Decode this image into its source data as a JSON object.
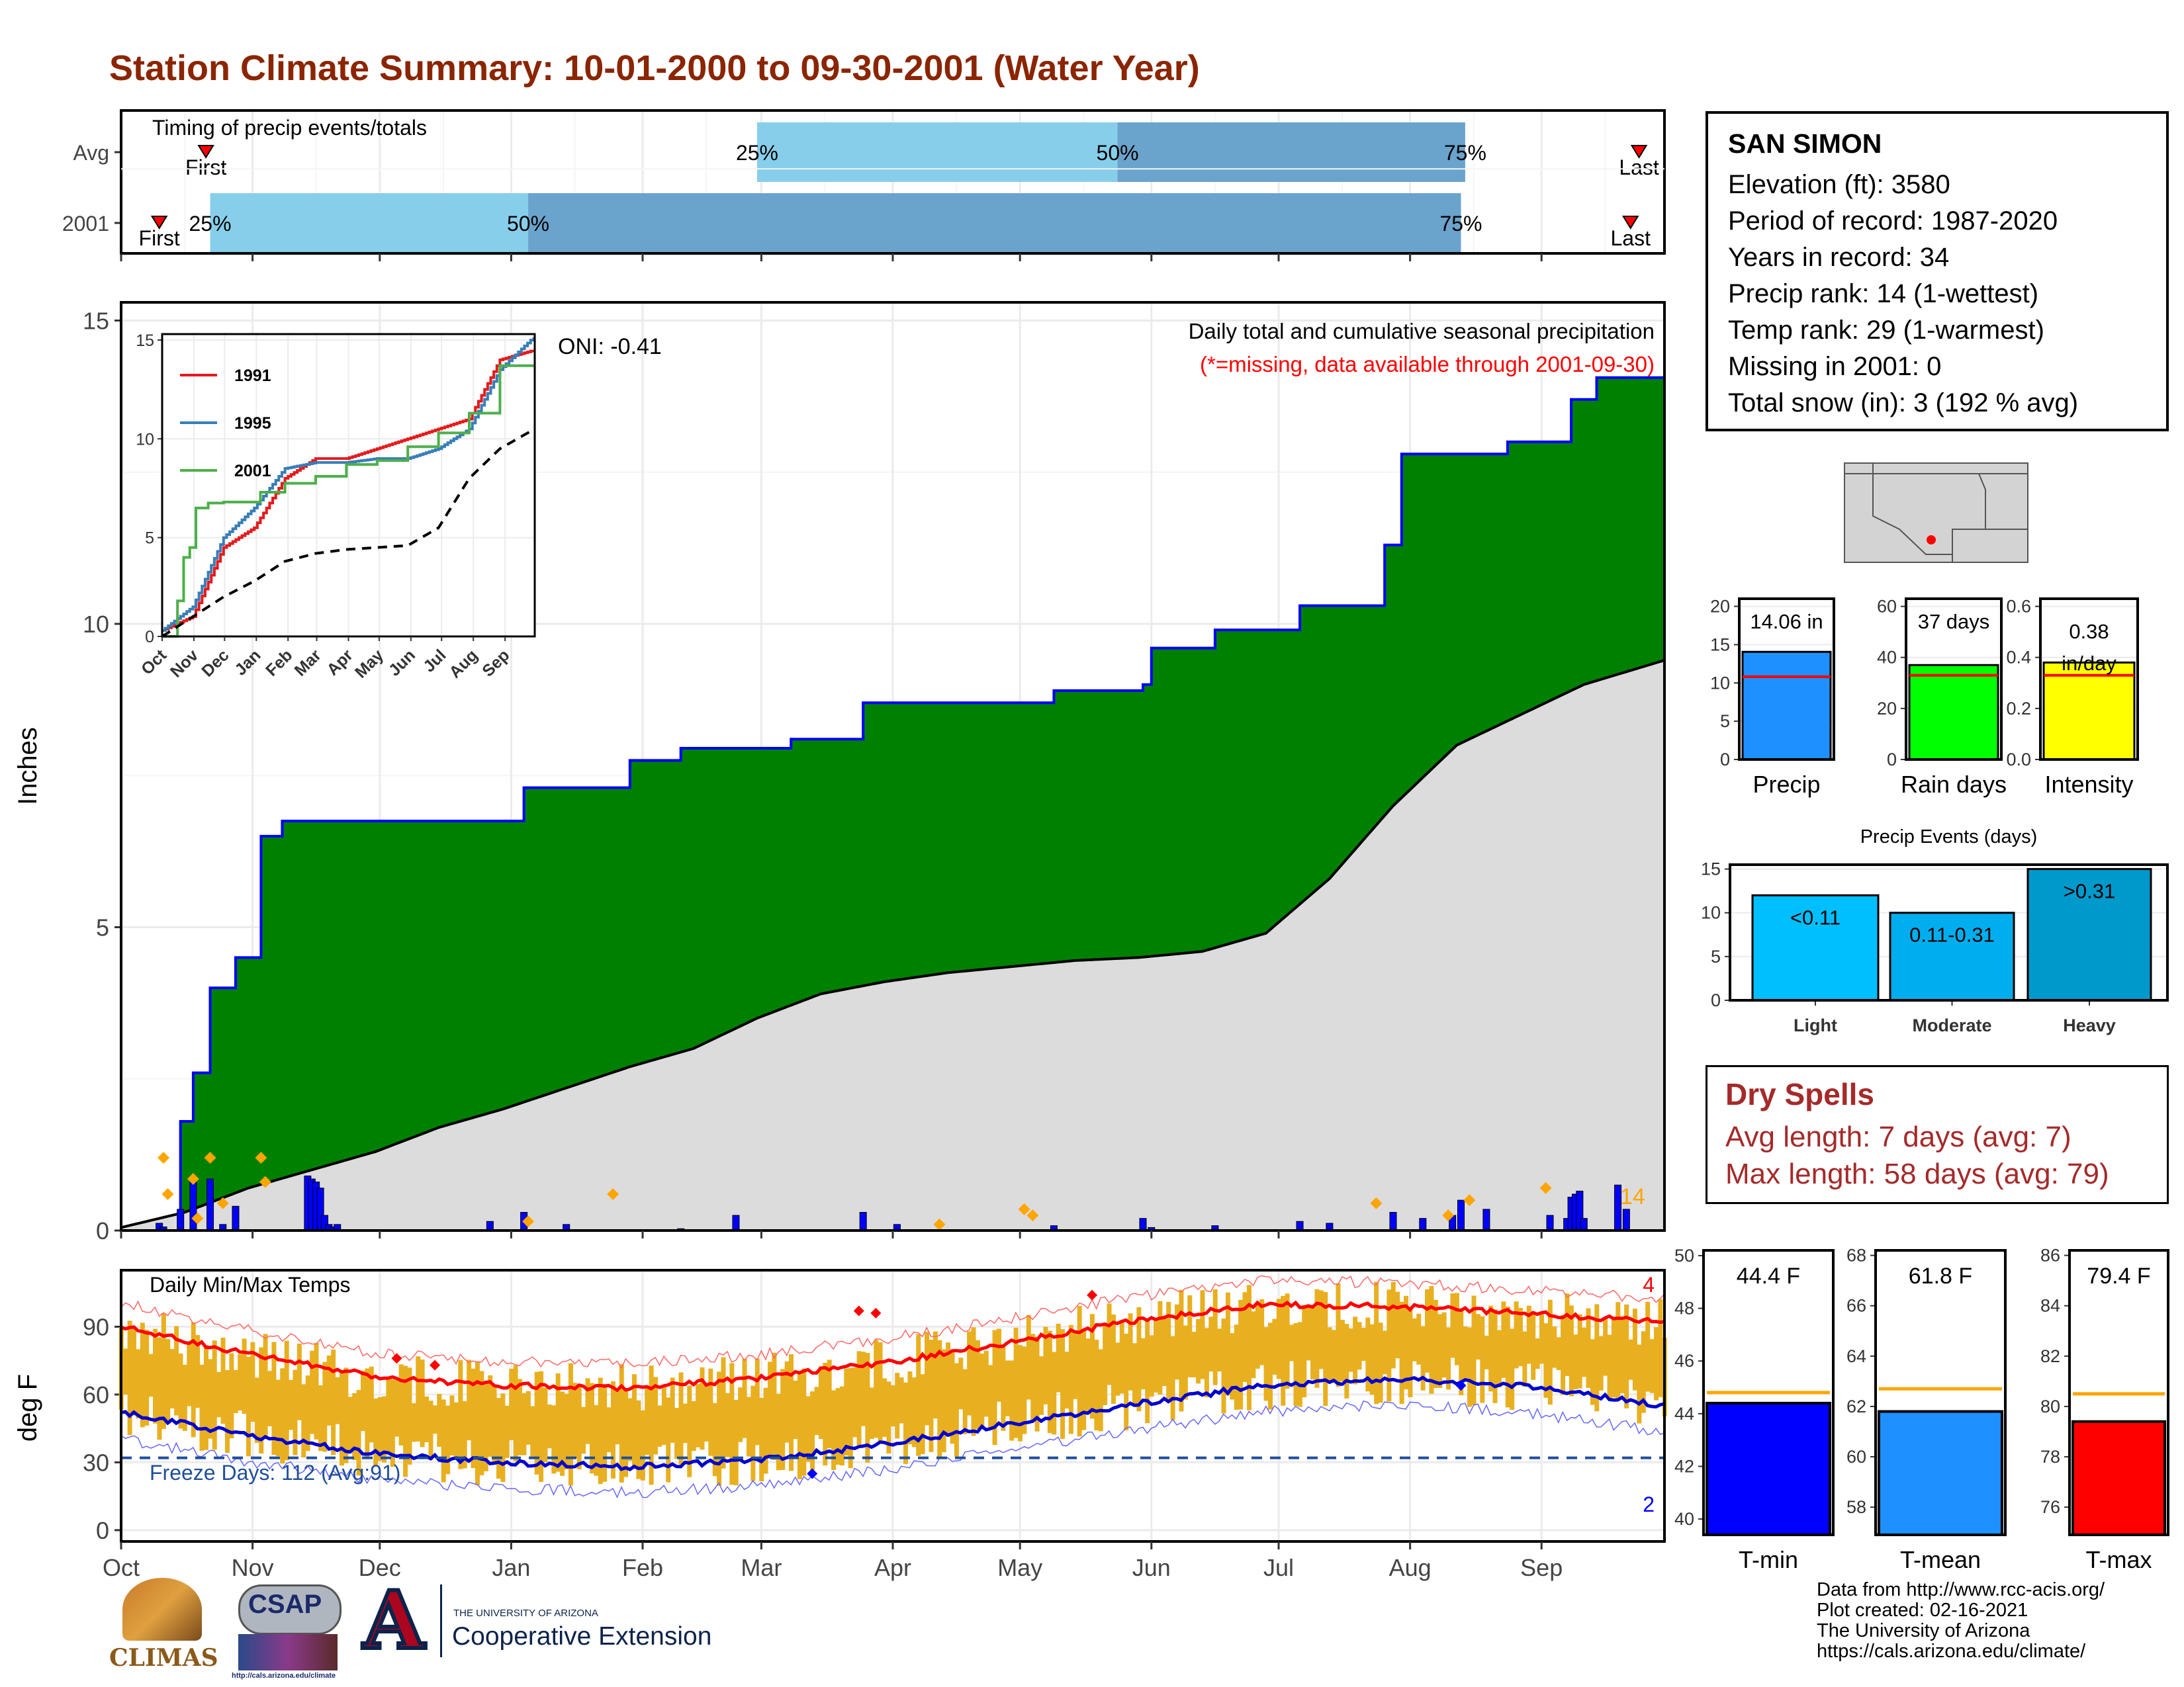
{
  "title": "Station Climate Summary: 10-01-2000 to 09-30-2001 (Water Year)",
  "colors": {
    "title": "#8b2500",
    "timing_light": "#87ceeb",
    "timing_dark": "#6aa3cc",
    "seasonal_fill": "#008000",
    "avg_fill": "#dcdcdc",
    "daily_bar": "#0000ff",
    "marker": "#ffa500",
    "temp_bar": "#e8b020",
    "tmax": "#ff0000",
    "tmin": "#0000cd"
  },
  "timing": {
    "title": "Timing of precip events/totals",
    "rows": [
      {
        "label": "Avg",
        "first_day": 20,
        "p25_day": 150,
        "p50_day": 235,
        "p75_day": 317,
        "last_day": 358,
        "first_label": "First",
        "last_label": "Last"
      },
      {
        "label": "2001",
        "first_day": 9,
        "p25_day": 21,
        "p50_day": 96,
        "p75_day": 316,
        "last_day": 356,
        "first_label": "First",
        "last_label": "Last"
      }
    ],
    "pct_labels": [
      "25%",
      "50%",
      "75%"
    ]
  },
  "main_chart": {
    "ylabel": "Inches",
    "yticks": [
      0,
      5,
      10,
      15
    ],
    "ylim": [
      0,
      15.3
    ],
    "annotation_title": "Daily total and cumulative seasonal precipitation",
    "annotation_missing": "(*=missing, data available through 2001-09-30)",
    "oni": "ONI: -0.41",
    "max_day_label": "14"
  },
  "inset": {
    "yticks": [
      0,
      5,
      10,
      15
    ],
    "months": [
      "Oct",
      "Nov",
      "Dec",
      "Jan",
      "Feb",
      "Mar",
      "Apr",
      "May",
      "Jun",
      "Jul",
      "Aug",
      "Sep"
    ],
    "legend": [
      {
        "name": "1991",
        "color": "#e41a1c"
      },
      {
        "name": "1995",
        "color": "#377eb8"
      },
      {
        "name": "2001",
        "color": "#4daf4a"
      }
    ]
  },
  "temp_chart": {
    "ylabel": "deg F",
    "title": "Daily Min/Max Temps",
    "yticks": [
      0,
      30,
      60,
      90
    ],
    "freeze_label": "Freeze Days: 112 (Avg:91)",
    "count_max": "4",
    "count_min": "2"
  },
  "x_months": [
    "Oct",
    "Nov",
    "Dec",
    "Jan",
    "Feb",
    "Mar",
    "Apr",
    "May",
    "Jun",
    "Jul",
    "Aug",
    "Sep"
  ],
  "station": {
    "name": "SAN SIMON",
    "lines": [
      "Elevation (ft): 3580",
      "Period of record: 1987-2020",
      "Years in record: 34",
      "Precip rank: 14 (1-wettest)",
      "Temp rank: 29 (1-warmest)",
      "Missing in 2001: 0",
      "Total snow (in): 3 (192 % avg)"
    ]
  },
  "summary_bars": [
    {
      "label": "Precip",
      "value_text": "14.06 in",
      "value": 14.06,
      "avg": 10.8,
      "ymax": 21,
      "ticks": [
        "0",
        "5",
        "10",
        "15",
        "20"
      ],
      "tickvals": [
        0,
        5,
        10,
        15,
        20
      ],
      "color": "#1e90ff"
    },
    {
      "label": "Rain days",
      "value_text": "37 days",
      "value": 37,
      "avg": 33,
      "ymax": 63,
      "ticks": [
        "0",
        "20",
        "40",
        "60"
      ],
      "tickvals": [
        0,
        20,
        40,
        60
      ],
      "color": "#00ff00"
    },
    {
      "label": "Intensity",
      "value_text": "0.38 in/day",
      "value": 0.38,
      "avg": 0.33,
      "ymax": 0.63,
      "ticks": [
        "0.0",
        "0.2",
        "0.4",
        "0.6"
      ],
      "tickvals": [
        0,
        0.2,
        0.4,
        0.6
      ],
      "color": "#ffff00"
    }
  ],
  "precip_events": {
    "title": "Precip Events (days)",
    "ticks": [
      "0",
      "5",
      "10",
      "15"
    ],
    "bars": [
      {
        "label": "Light",
        "range": "<0.11",
        "value": 12,
        "color": "#00bfff"
      },
      {
        "label": "Moderate",
        "range": "0.11-0.31",
        "value": 10,
        "color": "#00aeef"
      },
      {
        "label": "Heavy",
        "range": ">0.31",
        "value": 15,
        "color": "#0099cc"
      }
    ]
  },
  "dry_spells": {
    "title": "Dry Spells",
    "avg": "Avg length: 7 days (avg: 7)",
    "max": "Max length: 58 days (avg: 79)"
  },
  "temp_summary": [
    {
      "label": "T-min",
      "value_text": "44.4 F",
      "value": 44.4,
      "avg": 44.8,
      "ymin": 39.4,
      "ymax": 50.2,
      "ticks": [
        "40",
        "42",
        "44",
        "46",
        "48",
        "50"
      ],
      "tickvals": [
        40,
        42,
        44,
        46,
        48,
        50
      ],
      "color": "#0000ff"
    },
    {
      "label": "T-mean",
      "value_text": "61.8 F",
      "value": 61.8,
      "avg": 62.7,
      "ymin": 56.9,
      "ymax": 68.2,
      "ticks": [
        "58",
        "60",
        "62",
        "64",
        "66",
        "68"
      ],
      "tickvals": [
        58,
        60,
        62,
        64,
        66,
        68
      ],
      "color": "#1e90ff"
    },
    {
      "label": "T-max",
      "value_text": "79.4 F",
      "value": 79.4,
      "avg": 80.5,
      "ymin": 74.9,
      "ymax": 86.2,
      "ticks": [
        "76",
        "78",
        "80",
        "82",
        "84",
        "86"
      ],
      "tickvals": [
        76,
        78,
        80,
        82,
        84,
        86
      ],
      "color": "#ff0000"
    }
  ],
  "footer": [
    "Data from http://www.rcc-acis.org/",
    "Plot created: 02-16-2021",
    "The University of Arizona",
    "https://cals.arizona.edu/climate/"
  ],
  "logos": {
    "climas": "CLIMAS",
    "csap": "CSAP",
    "csap_url": "http://cals.arizona.edu/climate",
    "ua_line1": "THE UNIVERSITY OF ARIZONA",
    "ua_line2": "Cooperative Extension",
    "ua_letter": "A"
  },
  "chart_data": [
    {
      "type": "area",
      "title": "Daily total and cumulative seasonal precipitation",
      "ylabel": "Inches",
      "ylim": [
        0,
        15.3
      ],
      "series": [
        {
          "name": "",
          "x": [
            0,
            9,
            14,
            17,
            21,
            27,
            33,
            38,
            44,
            47,
            95,
            120,
            123,
            132,
            158,
            175,
            183,
            220,
            241,
            243,
            258,
            278,
            298,
            302,
            327,
            342,
            348,
            364
          ],
          "values": [
            0.05,
            0.1,
            1.8,
            2.6,
            4.0,
            4.5,
            6.5,
            6.75,
            6.75,
            6.75,
            7.3,
            7.75,
            7.75,
            7.95,
            8.1,
            8.7,
            8.7,
            8.9,
            9.0,
            9.6,
            9.9,
            10.3,
            11.3,
            12.8,
            13.0,
            13.7,
            14.06,
            14.06
          ]
        },
        {
          "name": "",
          "x": [
            0,
            15,
            30,
            45,
            60,
            75,
            90,
            105,
            120,
            135,
            150,
            165,
            180,
            195,
            210,
            225,
            240,
            255,
            270,
            285,
            300,
            315,
            330,
            345,
            364
          ],
          "values": [
            0.05,
            0.3,
            0.7,
            1.0,
            1.3,
            1.7,
            2.0,
            2.35,
            2.7,
            3.0,
            3.5,
            3.9,
            4.1,
            4.25,
            4.35,
            4.45,
            4.5,
            4.6,
            4.9,
            5.8,
            7.0,
            8.0,
            8.5,
            9.0,
            9.4
          ]
        }
      ]
    },
    {
      "type": "bar",
      "title": "",
      "x": [
        9,
        10,
        14,
        17,
        21,
        24,
        27,
        44,
        45,
        46,
        47,
        48,
        49,
        50,
        51,
        87,
        95,
        105,
        132,
        145,
        175,
        183,
        220,
        241,
        243,
        258,
        278,
        285,
        300,
        307,
        314,
        316,
        322,
        337,
        341,
        342,
        343,
        344,
        345,
        353,
        355
      ],
      "values": [
        0.12,
        0.06,
        0.35,
        0.8,
        0.85,
        0.1,
        0.4,
        0.9,
        0.85,
        0.8,
        0.7,
        0.25,
        0.1,
        0.06,
        0.1,
        0.15,
        0.3,
        0.1,
        0.03,
        0.25,
        0.3,
        0.1,
        0.08,
        0.2,
        0.05,
        0.08,
        0.15,
        0.12,
        0.3,
        0.2,
        0.25,
        0.5,
        0.35,
        0.25,
        0.2,
        0.55,
        0.6,
        0.65,
        0.2,
        0.75,
        0.35
      ]
    },
    {
      "type": "line",
      "title": "",
      "ylim": [
        0,
        15
      ],
      "series": [
        {
          "name": "1991",
          "x": [
            0,
            30,
            60,
            90,
            120,
            150,
            180,
            210,
            240,
            270,
            300,
            330,
            364
          ],
          "values": [
            0.3,
            1.0,
            4.5,
            5.5,
            8.0,
            9.0,
            9.0,
            9.5,
            10.0,
            10.5,
            11.0,
            14.0,
            14.5
          ]
        },
        {
          "name": "1995",
          "x": [
            0,
            30,
            60,
            90,
            120,
            150,
            180,
            210,
            240,
            270,
            300,
            330,
            364
          ],
          "values": [
            0.3,
            1.5,
            5.0,
            6.5,
            8.5,
            8.8,
            8.8,
            9.0,
            9.0,
            9.5,
            10.5,
            13.5,
            15.2
          ]
        },
        {
          "name": "2001",
          "x": [
            0,
            14,
            21,
            27,
            33,
            44,
            60,
            95,
            120,
            150,
            180,
            210,
            240,
            270,
            300,
            330,
            364
          ],
          "values": [
            0.0,
            1.8,
            4.0,
            4.5,
            6.5,
            6.75,
            6.8,
            7.3,
            7.75,
            8.1,
            8.7,
            8.9,
            9.6,
            10.3,
            11.3,
            13.7,
            14.06
          ]
        },
        {
          "name": "",
          "x": [
            0,
            30,
            60,
            90,
            120,
            150,
            180,
            210,
            240,
            270,
            300,
            330,
            364
          ],
          "values": [
            0.0,
            1.0,
            2.0,
            2.8,
            3.8,
            4.2,
            4.4,
            4.5,
            4.6,
            5.5,
            8.0,
            9.5,
            10.5
          ]
        }
      ]
    },
    {
      "type": "line",
      "title": "Daily Min/Max Temps",
      "ylabel": "deg F",
      "ylim": [
        -5,
        115
      ],
      "series": [
        {
          "name": "",
          "x": [
            0,
            30,
            60,
            90,
            120,
            150,
            180,
            210,
            240,
            270,
            300,
            330,
            364
          ],
          "values": [
            90,
            78,
            68,
            64,
            63,
            67,
            74,
            83,
            93,
            100,
            99,
            96,
            92
          ]
        },
        {
          "name": "",
          "x": [
            0,
            30,
            60,
            90,
            120,
            150,
            180,
            210,
            240,
            270,
            300,
            330,
            364
          ],
          "values": [
            52,
            42,
            34,
            30,
            28,
            31,
            38,
            47,
            56,
            64,
            67,
            64,
            55
          ]
        }
      ]
    },
    {
      "type": "bar",
      "title": "",
      "categories": [
        "Precip",
        "Rain days",
        "Intensity"
      ],
      "values": [
        14.06,
        37,
        0.38
      ]
    },
    {
      "type": "bar",
      "title": "Precip Events (days)",
      "categories": [
        "Light",
        "Moderate",
        "Heavy"
      ],
      "values": [
        12,
        10,
        15
      ]
    },
    {
      "type": "bar",
      "title": "",
      "categories": [
        "T-min",
        "T-mean",
        "T-max"
      ],
      "values": [
        44.4,
        61.8,
        79.4
      ]
    }
  ]
}
